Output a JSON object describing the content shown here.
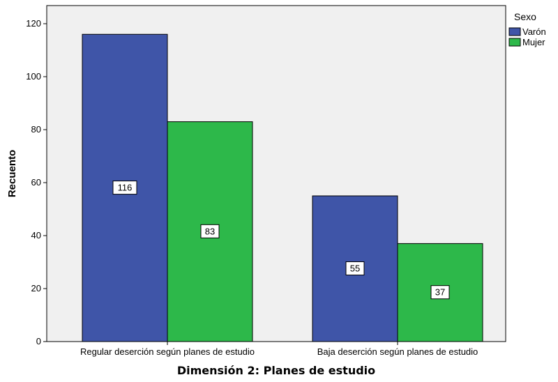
{
  "chart_data": {
    "type": "bar",
    "categories": [
      "Regular deserción según planes de estudio",
      "Baja deserción según planes de estudio"
    ],
    "series": [
      {
        "name": "Varón",
        "values": [
          116,
          55
        ],
        "color": "#3f55a8"
      },
      {
        "name": "Mujer",
        "values": [
          83,
          37
        ],
        "color": "#2db84a"
      }
    ],
    "title": "",
    "xlabel": "Dimensión 2: Planes de estudio",
    "ylabel": "Recuento",
    "ylim": [
      0,
      120
    ],
    "yticks": [
      0,
      20,
      40,
      60,
      80,
      100,
      120
    ],
    "legend": {
      "title": "Sexo",
      "position": "top-right"
    },
    "grid": false,
    "plot_background": "#f0f0f0",
    "data_labels": true
  }
}
